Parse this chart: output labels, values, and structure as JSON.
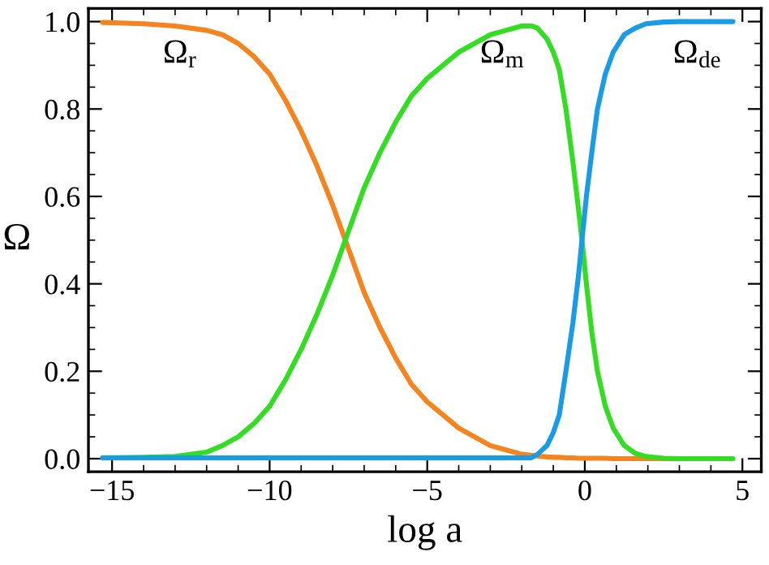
{
  "chart_data": {
    "type": "line",
    "xlabel": "log a",
    "ylabel": "Ω",
    "x": [
      -15.3,
      -14,
      -13,
      -12,
      -11.5,
      -11,
      -10.5,
      -10,
      -9.5,
      -9,
      -8.5,
      -8,
      -7.6,
      -7,
      -6.5,
      -6,
      -5.5,
      -5,
      -4.5,
      -4,
      -3,
      -2.5,
      -2,
      -1.7,
      -1.5,
      -1.2,
      -1,
      -0.81,
      -0.6,
      -0.38,
      -0.2,
      -0.09,
      0.05,
      0.22,
      0.4,
      0.65,
      0.9,
      1.25,
      1.6,
      1.94,
      2.5,
      3,
      4,
      4.7
    ],
    "series": [
      {
        "color": "#f5841f",
        "values": [
          0.998,
          0.995,
          0.99,
          0.98,
          0.97,
          0.95,
          0.92,
          0.88,
          0.82,
          0.75,
          0.67,
          0.58,
          0.5,
          0.38,
          0.3,
          0.23,
          0.17,
          0.13,
          0.1,
          0.07,
          0.03,
          0.02,
          0.01,
          0.008,
          0.006,
          0.004,
          0.003,
          0.003,
          0.002,
          0.002,
          0.001,
          0.001,
          0.001,
          0.001,
          0.001,
          0.001,
          0.0,
          0.0,
          0.0,
          0.0,
          0.0,
          0.0,
          null,
          null
        ]
      },
      {
        "color": "#33dd22",
        "values": [
          0.002,
          0.003,
          0.005,
          0.015,
          0.03,
          0.05,
          0.08,
          0.12,
          0.18,
          0.25,
          0.33,
          0.42,
          0.5,
          0.62,
          0.7,
          0.77,
          0.83,
          0.87,
          0.9,
          0.93,
          0.97,
          0.98,
          0.99,
          0.99,
          0.985,
          0.96,
          0.93,
          0.89,
          0.8,
          0.68,
          0.57,
          0.5,
          0.4,
          0.29,
          0.2,
          0.12,
          0.07,
          0.03,
          0.012,
          0.005,
          0.001,
          0.0,
          0.0,
          0.0
        ]
      },
      {
        "color": "#1a9be6",
        "values": [
          0.002,
          0.002,
          0.002,
          0.002,
          0.002,
          0.002,
          0.002,
          0.002,
          0.002,
          0.002,
          0.002,
          0.002,
          0.002,
          0.002,
          0.002,
          0.002,
          0.002,
          0.002,
          0.002,
          0.002,
          0.002,
          0.002,
          0.002,
          0.002,
          0.01,
          0.03,
          0.06,
          0.1,
          0.2,
          0.31,
          0.42,
          0.5,
          0.6,
          0.7,
          0.8,
          0.88,
          0.93,
          0.97,
          0.985,
          0.995,
          0.999,
          1.0,
          1.0,
          1.0
        ]
      }
    ],
    "xlim": [
      -15.75,
      5.6
    ],
    "ylim": [
      -0.03,
      1.03
    ],
    "xticks": [
      {
        "value": -15,
        "label": "−15"
      },
      {
        "value": -10,
        "label": "−10"
      },
      {
        "value": -5,
        "label": "−5"
      },
      0,
      5
    ],
    "yticks": [
      {
        "value": 0,
        "label": "0.0"
      },
      {
        "value": 0.2,
        "label": "0.2"
      },
      {
        "value": 0.4,
        "label": "0.4"
      },
      {
        "value": 0.6,
        "label": "0.6"
      },
      {
        "value": 0.8,
        "label": "0.8"
      },
      {
        "value": 1,
        "label": "1.0"
      }
    ],
    "grid": false,
    "legend": false,
    "annotations": [
      "Ω$_{r}$",
      "Ω$_{m}$",
      "Ω$_{de}$"
    ]
  }
}
